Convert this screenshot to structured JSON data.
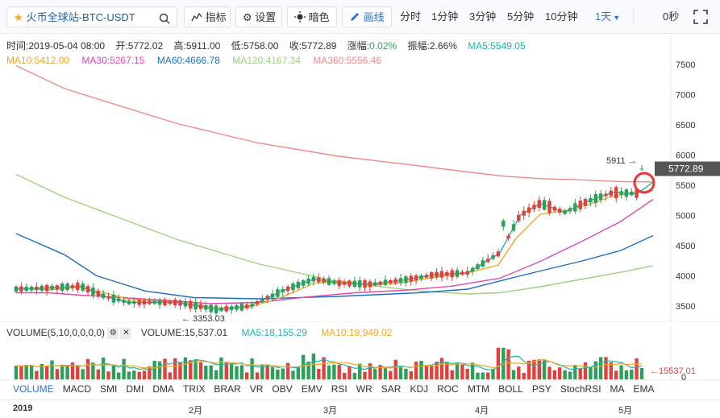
{
  "toolbar": {
    "symbol": "火币全球站-BTC-USDT",
    "indicators_label": "指标",
    "settings_label": "设置",
    "theme_label": "暗色",
    "draw_label": "画线",
    "periods": [
      "分时",
      "1分钟",
      "3分钟",
      "5分钟",
      "10分钟"
    ],
    "active_period": "1天",
    "countdown": "0秒"
  },
  "info": {
    "time": "时间:2019-05-04 08:00",
    "open": "开:5772.02",
    "high": "高:5911.00",
    "low": "低:5758.00",
    "close": "收:5772.89",
    "change": "涨幅:",
    "change_value": "0.02%",
    "amplitude": "振幅:2.66%",
    "ma5": "MA5:5549.05"
  },
  "ma": {
    "ma10": "MA10:5412.00",
    "ma30": "MA30:5267.15",
    "ma60": "MA60:4666.78",
    "ma120": "MA120:4167.34",
    "ma360": "MA360:5556.46"
  },
  "colors": {
    "up": "#2e9e5b",
    "down": "#e0413c",
    "ma5": "#1fb6a7",
    "ma10": "#f5a623",
    "ma30": "#e04ab0",
    "ma60": "#1e6fc0",
    "ma120": "#9ed27f",
    "ma360": "#f08a86",
    "accent": "#2a6fdb"
  },
  "chart_data": {
    "type": "candlestick",
    "ylim": [
      3200,
      7800
    ],
    "y_ticks": [
      "7500",
      "7000",
      "6500",
      "6000",
      "5500",
      "5000",
      "4500",
      "4000",
      "3500"
    ],
    "current_price": "5772.89",
    "high_label": "5911",
    "low_label": "← 3353.03",
    "x_labels": [
      "2019",
      "2月",
      "3月",
      "4月",
      "5月"
    ],
    "series": [
      {
        "name": "MA360",
        "values": [
          [
            0,
            7480
          ],
          [
            60,
            7100
          ],
          [
            120,
            6850
          ],
          [
            200,
            6520
          ],
          [
            300,
            6200
          ],
          [
            400,
            5980
          ],
          [
            500,
            5820
          ],
          [
            560,
            5720
          ],
          [
            605,
            5650
          ],
          [
            650,
            5610
          ],
          [
            700,
            5590
          ],
          [
            750,
            5560
          ],
          [
            790,
            5556
          ]
        ]
      },
      {
        "name": "MA120",
        "values": [
          [
            0,
            5680
          ],
          [
            60,
            5300
          ],
          [
            120,
            5000
          ],
          [
            200,
            4600
          ],
          [
            300,
            4200
          ],
          [
            400,
            3900
          ],
          [
            500,
            3750
          ],
          [
            560,
            3700
          ],
          [
            600,
            3720
          ],
          [
            650,
            3820
          ],
          [
            700,
            3940
          ],
          [
            750,
            4060
          ],
          [
            790,
            4167
          ]
        ]
      },
      {
        "name": "MA60",
        "values": [
          [
            0,
            4700
          ],
          [
            60,
            4350
          ],
          [
            100,
            4000
          ],
          [
            160,
            3750
          ],
          [
            220,
            3640
          ],
          [
            300,
            3620
          ],
          [
            400,
            3660
          ],
          [
            500,
            3720
          ],
          [
            560,
            3780
          ],
          [
            610,
            3950
          ],
          [
            650,
            4080
          ],
          [
            700,
            4240
          ],
          [
            750,
            4420
          ],
          [
            790,
            4667
          ]
        ]
      },
      {
        "name": "MA30",
        "values": [
          [
            0,
            3720
          ],
          [
            40,
            3720
          ],
          [
            80,
            3680
          ],
          [
            120,
            3650
          ],
          [
            180,
            3600
          ],
          [
            240,
            3540
          ],
          [
            300,
            3560
          ],
          [
            360,
            3650
          ],
          [
            420,
            3720
          ],
          [
            480,
            3760
          ],
          [
            540,
            3830
          ],
          [
            600,
            3960
          ],
          [
            650,
            4240
          ],
          [
            700,
            4560
          ],
          [
            750,
            4900
          ],
          [
            790,
            5267
          ]
        ]
      },
      {
        "name": "MA10",
        "values": [
          [
            0,
            3800
          ],
          [
            40,
            3770
          ],
          [
            80,
            3810
          ],
          [
            110,
            3720
          ],
          [
            140,
            3610
          ],
          [
            200,
            3560
          ],
          [
            250,
            3470
          ],
          [
            290,
            3480
          ],
          [
            330,
            3650
          ],
          [
            370,
            3880
          ],
          [
            400,
            3920
          ],
          [
            440,
            3840
          ],
          [
            480,
            3890
          ],
          [
            520,
            3980
          ],
          [
            560,
            4050
          ],
          [
            598,
            4180
          ],
          [
            620,
            4620
          ],
          [
            650,
            5020
          ],
          [
            680,
            5080
          ],
          [
            710,
            5180
          ],
          [
            740,
            5320
          ],
          [
            770,
            5380
          ],
          [
            790,
            5412
          ]
        ]
      },
      {
        "name": "MA5",
        "values": [
          [
            0,
            3780
          ],
          [
            40,
            3800
          ],
          [
            80,
            3830
          ],
          [
            110,
            3660
          ],
          [
            140,
            3560
          ],
          [
            200,
            3560
          ],
          [
            250,
            3440
          ],
          [
            290,
            3500
          ],
          [
            330,
            3750
          ],
          [
            370,
            3950
          ],
          [
            400,
            3880
          ],
          [
            440,
            3860
          ],
          [
            480,
            3930
          ],
          [
            520,
            4020
          ],
          [
            560,
            4050
          ],
          [
            600,
            4380
          ],
          [
            625,
            5000
          ],
          [
            650,
            5200
          ],
          [
            680,
            5050
          ],
          [
            710,
            5240
          ],
          [
            740,
            5380
          ],
          [
            770,
            5360
          ],
          [
            790,
            5549
          ]
        ]
      }
    ],
    "volume": {
      "label": "VOLUME(5,10,0,0,0,0)",
      "value": "VOLUME:15,537.01",
      "ma5": "MA5:18,155.29",
      "ma10": "MA10:18,949.02",
      "current": "←15537.01",
      "zero": "0"
    }
  },
  "indicators": [
    "VOLUME",
    "MACD",
    "SMI",
    "DMI",
    "DMA",
    "TRIX",
    "BRAR",
    "VR",
    "OBV",
    "EMV",
    "RSI",
    "WR",
    "SAR",
    "KDJ",
    "ROC",
    "MTM",
    "BOLL",
    "PSY",
    "StochRSI",
    "MA",
    "EMA"
  ]
}
